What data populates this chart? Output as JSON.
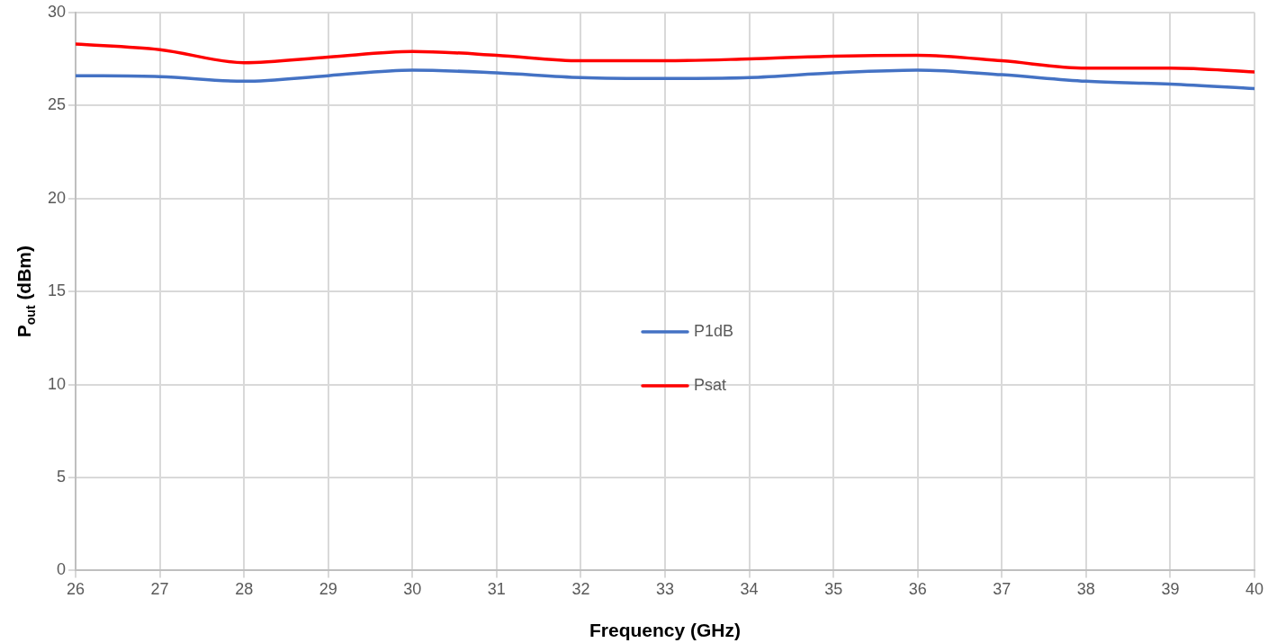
{
  "chart_data": {
    "type": "line",
    "xlabel": "Frequency (GHz)",
    "ylabel": "P$_{out}$ (dBm)",
    "x": [
      26,
      27,
      28,
      29,
      30,
      31,
      32,
      33,
      34,
      35,
      36,
      37,
      38,
      39,
      40
    ],
    "series": [
      {
        "name": "P1dB",
        "color": "#4472c4",
        "values": [
          26.6,
          26.55,
          26.3,
          26.6,
          26.9,
          26.75,
          26.5,
          26.45,
          26.5,
          26.75,
          26.9,
          26.65,
          26.3,
          26.15,
          25.9
        ]
      },
      {
        "name": "Psat",
        "color": "#ff0000",
        "values": [
          28.3,
          28.0,
          27.3,
          27.6,
          27.9,
          27.7,
          27.4,
          27.4,
          27.5,
          27.65,
          27.7,
          27.4,
          27.0,
          27.0,
          26.8
        ]
      }
    ],
    "xlim": [
      26,
      40
    ],
    "xticks": [
      26,
      27,
      28,
      29,
      30,
      31,
      32,
      33,
      34,
      35,
      36,
      37,
      38,
      39,
      40
    ],
    "ylim": [
      0,
      30
    ],
    "yticks": [
      0,
      5,
      10,
      15,
      20,
      25,
      30
    ],
    "grid": true,
    "legend": "center",
    "marker": "none",
    "line_style": "solid"
  }
}
